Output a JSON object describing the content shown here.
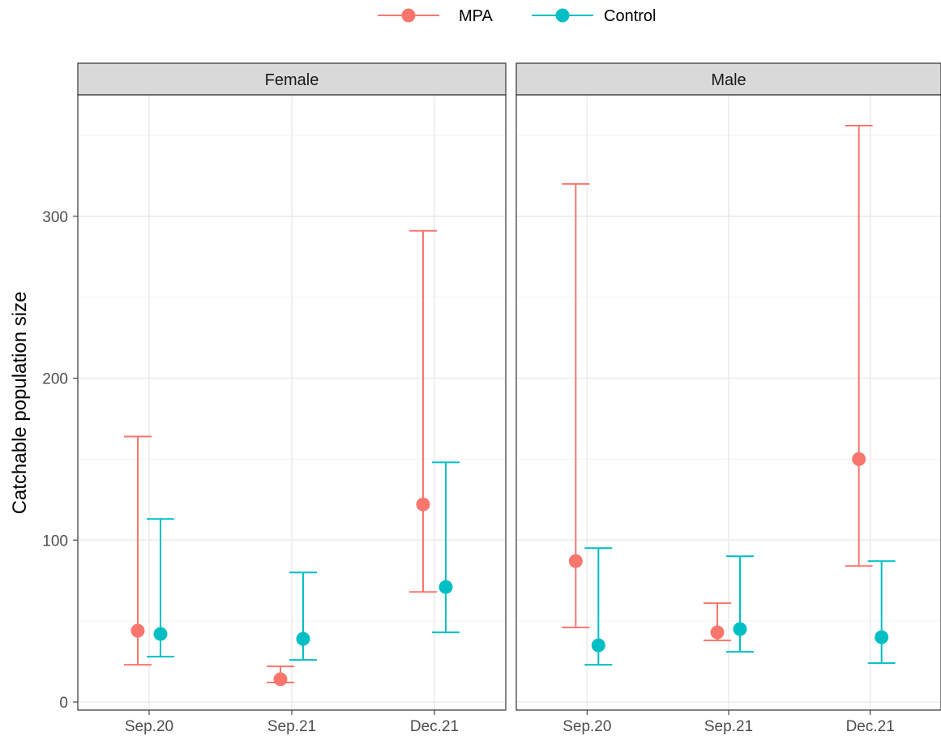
{
  "chart_data": {
    "type": "scatter",
    "subtype": "point-with-errorbars",
    "facet_by": "sex",
    "facets": [
      "Female",
      "Male"
    ],
    "categories": [
      "Sep.20",
      "Sep.21",
      "Dec.21"
    ],
    "ylabel": "Catchable population size",
    "xlabel": "",
    "ylim": [
      -5,
      375
    ],
    "yticks": [
      0,
      100,
      200,
      300
    ],
    "grid": true,
    "legend": {
      "position": "top",
      "entries": [
        "MPA",
        "Control"
      ]
    },
    "series": [
      {
        "name": "MPA",
        "color": "#F8766D",
        "values": {
          "Female": [
            {
              "x": "Sep.20",
              "y": 44,
              "lower": 23,
              "upper": 164
            },
            {
              "x": "Sep.21",
              "y": 14,
              "lower": 12,
              "upper": 22
            },
            {
              "x": "Dec.21",
              "y": 122,
              "lower": 68,
              "upper": 291
            }
          ],
          "Male": [
            {
              "x": "Sep.20",
              "y": 87,
              "lower": 46,
              "upper": 320
            },
            {
              "x": "Sep.21",
              "y": 43,
              "lower": 38,
              "upper": 61
            },
            {
              "x": "Dec.21",
              "y": 150,
              "lower": 84,
              "upper": 356
            }
          ]
        }
      },
      {
        "name": "Control",
        "color": "#00BFC4",
        "values": {
          "Female": [
            {
              "x": "Sep.20",
              "y": 42,
              "lower": 28,
              "upper": 113
            },
            {
              "x": "Sep.21",
              "y": 39,
              "lower": 26,
              "upper": 80
            },
            {
              "x": "Dec.21",
              "y": 71,
              "lower": 43,
              "upper": 148
            }
          ],
          "Male": [
            {
              "x": "Sep.20",
              "y": 35,
              "lower": 23,
              "upper": 95
            },
            {
              "x": "Sep.21",
              "y": 45,
              "lower": 31,
              "upper": 90
            },
            {
              "x": "Dec.21",
              "y": 40,
              "lower": 24,
              "upper": 87
            }
          ]
        }
      }
    ]
  }
}
